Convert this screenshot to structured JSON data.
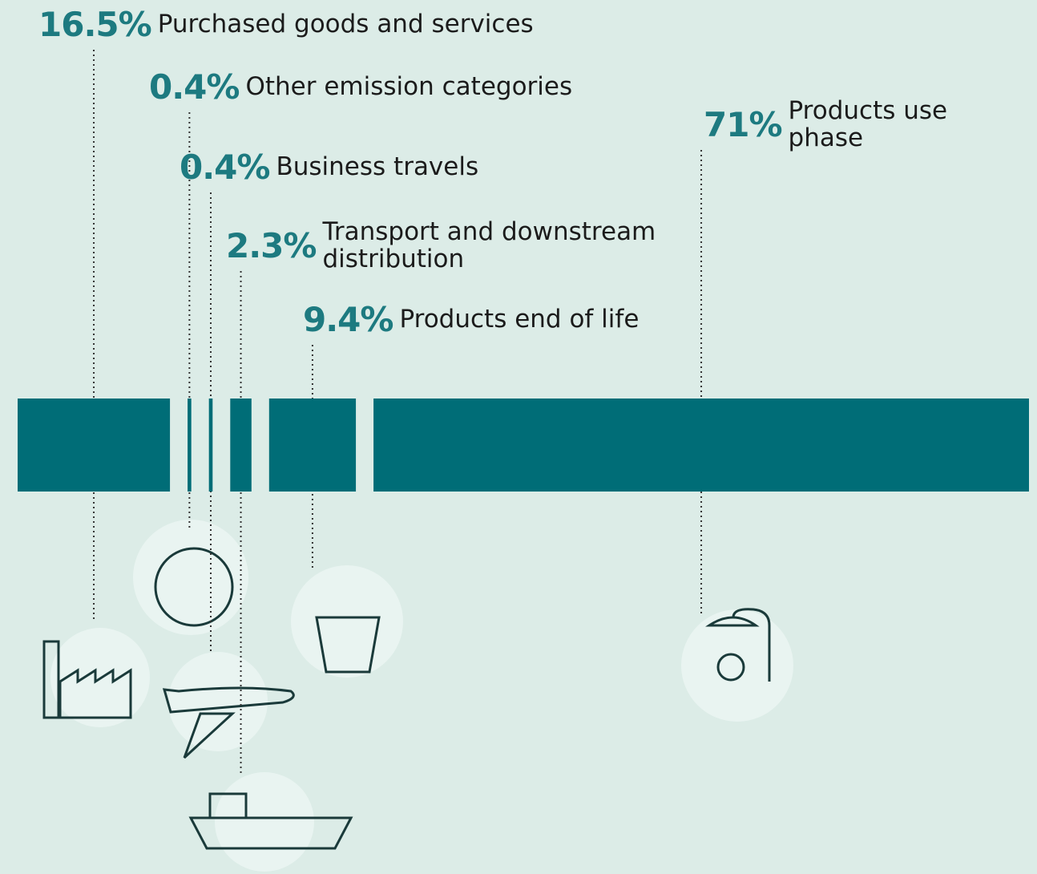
{
  "chart_data": {
    "type": "segmented-bar",
    "categories": [
      "Purchased goods and services",
      "Other emission categories",
      "Business travels",
      "Transport and downstream distribution",
      "Products end of life",
      "Products use phase"
    ],
    "values": [
      16.5,
      0.4,
      0.4,
      2.3,
      9.4,
      71
    ],
    "value_labels": [
      "16.5%",
      "0.4%",
      "0.4%",
      "2.3%",
      "9.4%",
      "71%"
    ],
    "color": "#006d77"
  }
}
